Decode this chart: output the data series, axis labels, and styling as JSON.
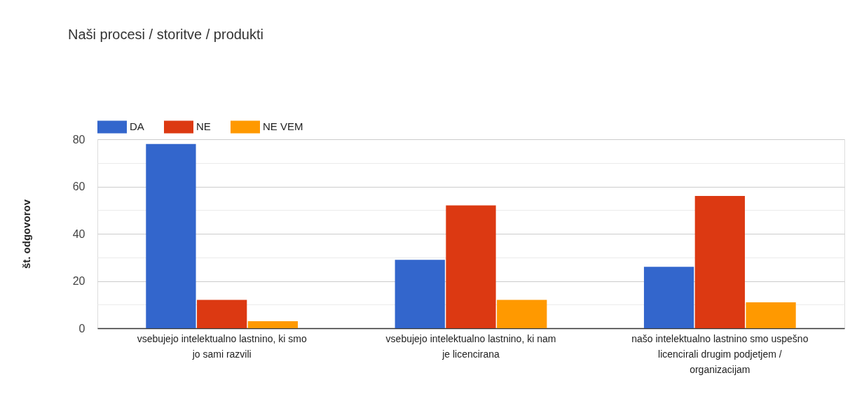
{
  "chart_data": {
    "type": "bar",
    "title": "Naši procesi / storitve / produkti",
    "ylabel": "št. odgovorov",
    "categories": [
      "vsebujejo intelektualno lastnino, ki smo jo sami razvili",
      "vsebujejo intelektualno lastnino, ki nam je licencirana",
      "našo intelektualno lastnino smo uspešno licencirali drugim podjetjem / organizacijam"
    ],
    "series": [
      {
        "name": "DA",
        "color": "#3366cc",
        "values": [
          78,
          29,
          26
        ]
      },
      {
        "name": "NE",
        "color": "#dc3912",
        "values": [
          12,
          52,
          56
        ]
      },
      {
        "name": "NE VEM",
        "color": "#ff9900",
        "values": [
          3,
          12,
          11
        ]
      }
    ],
    "ylim": [
      0,
      80
    ],
    "yticks": [
      0,
      {
        "value": 10,
        "label": null
      },
      20,
      {
        "value": 30,
        "label": null
      },
      40,
      {
        "value": 50,
        "label": null
      },
      60,
      {
        "value": 70,
        "label": null
      },
      80
    ],
    "grid": "y",
    "legend": "top left"
  }
}
